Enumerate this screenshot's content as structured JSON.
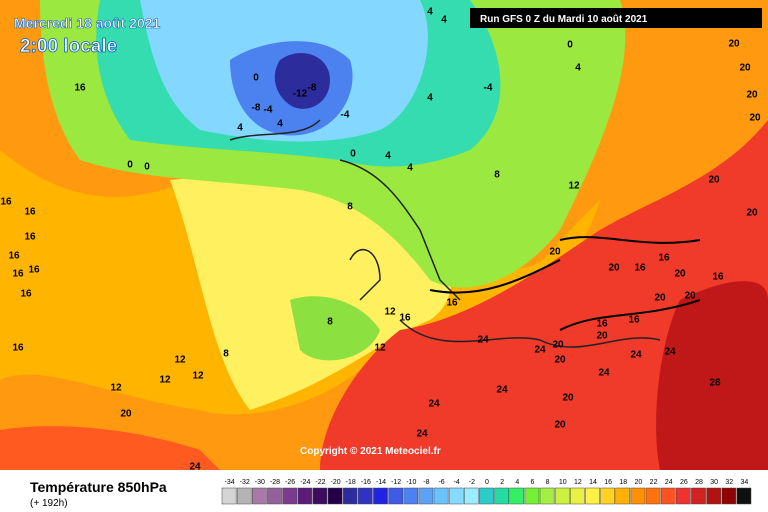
{
  "header": {
    "date": "Mercredi 18 août 2021",
    "time": "2:00 locale",
    "run": "Run GFS 0 Z du Mardi 10 août 2021"
  },
  "copyright": "Copyright © 2021 Meteociel.fr",
  "footer": {
    "title": "Température 850hPa",
    "lead": "(+ 192h)"
  },
  "legend": {
    "values": [
      -34,
      -32,
      -30,
      -28,
      -26,
      -24,
      -22,
      -20,
      -18,
      -16,
      -14,
      -12,
      -10,
      -8,
      -6,
      -4,
      -2,
      0,
      2,
      4,
      6,
      8,
      10,
      12,
      14,
      16,
      18,
      20,
      22,
      24,
      26,
      28,
      30,
      32,
      34
    ],
    "colors": [
      "#d4d4d4",
      "#b4b4b4",
      "#a878a8",
      "#94609a",
      "#7c3c8e",
      "#5c1c7a",
      "#3e0c5e",
      "#220048",
      "#2c2c9c",
      "#3232c2",
      "#2222e2",
      "#3c5ce8",
      "#4c82f0",
      "#5ca2f5",
      "#6cc2fa",
      "#84daff",
      "#9aecff",
      "#2ccccc",
      "#22dca0",
      "#34ee64",
      "#74f034",
      "#a4f040",
      "#ccf040",
      "#eaf044",
      "#fff044",
      "#ffd224",
      "#ffb204",
      "#ff9204",
      "#ff7210",
      "#ff5222",
      "#f03232",
      "#d22222",
      "#b21212",
      "#900404",
      "#101010"
    ]
  },
  "map_labels": [
    16,
    0,
    0,
    16,
    16,
    16,
    16,
    16,
    16,
    16,
    16,
    12,
    12,
    12,
    12,
    8,
    20,
    24,
    8,
    8,
    12,
    16,
    12,
    16,
    24,
    24,
    20,
    20,
    24,
    24,
    24,
    24,
    20,
    24,
    24,
    20,
    28,
    20,
    20,
    16,
    16,
    20,
    16,
    20,
    20,
    16,
    20,
    16,
    12,
    20,
    20,
    20,
    20,
    20,
    20,
    4,
    4,
    -4,
    4,
    0,
    -4,
    4,
    4,
    4,
    0,
    8,
    -12,
    -8,
    -4,
    -8,
    4,
    0,
    4
  ]
}
